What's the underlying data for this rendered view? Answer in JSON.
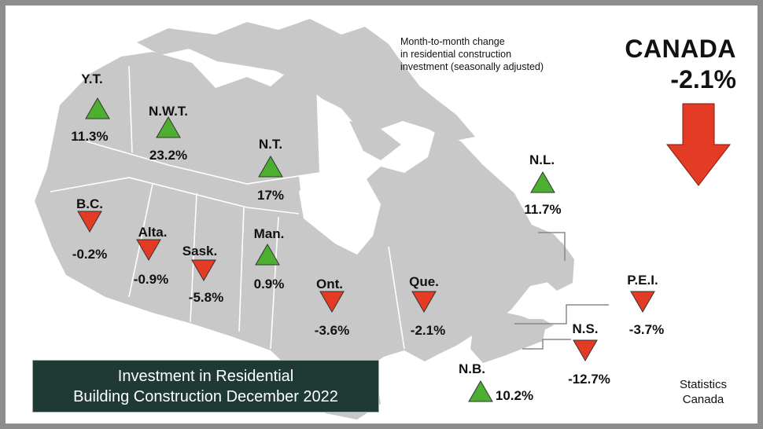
{
  "subtitle": [
    "Month-to-month change",
    "in residential construction",
    "investment (seasonally adjusted)"
  ],
  "national": {
    "label": "CANADA",
    "value": "-2.1%",
    "direction": "down"
  },
  "title": [
    "Investment in Residential",
    "Building Construction December 2022"
  ],
  "source": [
    "Statistics",
    "Canada"
  ],
  "colors": {
    "up": "#4caf2f",
    "down": "#e43b25",
    "land": "#c8c8c8",
    "border_line": "#ffffff",
    "title_bg": "#1f3a35"
  },
  "regions": [
    {
      "name": "Y.T.",
      "value": "11.3%",
      "direction": "up"
    },
    {
      "name": "N.W.T.",
      "value": "23.2%",
      "direction": "up"
    },
    {
      "name": "N.T.",
      "value": "17%",
      "direction": "up"
    },
    {
      "name": "B.C.",
      "value": "-0.2%",
      "direction": "down"
    },
    {
      "name": "Alta.",
      "value": "-0.9%",
      "direction": "down"
    },
    {
      "name": "Sask.",
      "value": "-5.8%",
      "direction": "down"
    },
    {
      "name": "Man.",
      "value": "0.9%",
      "direction": "up"
    },
    {
      "name": "Ont.",
      "value": "-3.6%",
      "direction": "down"
    },
    {
      "name": "Que.",
      "value": "-2.1%",
      "direction": "down"
    },
    {
      "name": "N.L.",
      "value": "11.7%",
      "direction": "up"
    },
    {
      "name": "P.E.I.",
      "value": "-3.7%",
      "direction": "down"
    },
    {
      "name": "N.S.",
      "value": "-12.7%",
      "direction": "down"
    },
    {
      "name": "N.B.",
      "value": "10.2%",
      "direction": "up"
    }
  ]
}
